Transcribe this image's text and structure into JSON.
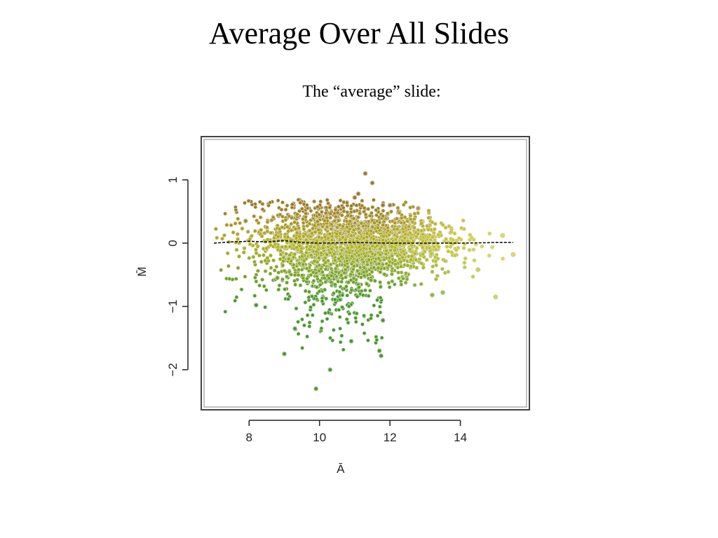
{
  "slide": {
    "title": "Average Over All Slides",
    "subtitle": "The “average” slide:"
  },
  "colors": {
    "point_high_M": "#a07a16",
    "point_mid": "#b7b500",
    "point_low_M": "#3f9e1c",
    "point_high_A": "#e8e835",
    "loess_line": "#111111",
    "frame": "#444444"
  },
  "chart_data": {
    "type": "scatter",
    "title": "",
    "xlabel": "Ā",
    "ylabel": "M̄",
    "xlim": [
      6.7,
      15.9
    ],
    "ylim": [
      -2.6,
      1.65
    ],
    "x_ticks": [
      8,
      10,
      12,
      14
    ],
    "x_tick_labels": [
      "8",
      "10",
      "12",
      "14"
    ],
    "y_ticks": [
      1,
      0,
      -1,
      -2
    ],
    "y_tick_labels": [
      "1",
      "0",
      "−1",
      "−2"
    ],
    "grid": false,
    "legend": "none",
    "point_cloud": {
      "description_free": true,
      "approx_n_points": 2600,
      "x_range": [
        7.0,
        15.5
      ],
      "core_y_range": [
        -0.4,
        0.45
      ]
    },
    "outliers": [
      {
        "x": 11.3,
        "y": 1.1
      },
      {
        "x": 11.5,
        "y": 0.95
      },
      {
        "x": 11.1,
        "y": 0.78
      },
      {
        "x": 11.0,
        "y": 0.72
      },
      {
        "x": 12.8,
        "y": 0.55
      },
      {
        "x": 11.8,
        "y": 0.6
      },
      {
        "x": 12.0,
        "y": 0.6
      },
      {
        "x": 9.9,
        "y": -2.3
      },
      {
        "x": 10.3,
        "y": -2.0
      },
      {
        "x": 11.7,
        "y": -1.7
      },
      {
        "x": 11.75,
        "y": -1.78
      },
      {
        "x": 9.0,
        "y": -1.75
      },
      {
        "x": 10.9,
        "y": -1.55
      },
      {
        "x": 11.8,
        "y": -1.22
      },
      {
        "x": 13.2,
        "y": -0.82
      },
      {
        "x": 13.5,
        "y": -0.78
      },
      {
        "x": 15.0,
        "y": -0.85
      },
      {
        "x": 14.5,
        "y": -0.42
      },
      {
        "x": 15.5,
        "y": -0.18
      },
      {
        "x": 15.2,
        "y": 0.12
      },
      {
        "x": 7.9,
        "y": 0.35
      },
      {
        "x": 8.8,
        "y": -0.55
      },
      {
        "x": 8.2,
        "y": -0.98
      },
      {
        "x": 9.3,
        "y": -1.35
      }
    ],
    "loess_line": {
      "x": [
        7.0,
        7.5,
        8.0,
        8.5,
        9.0,
        9.5,
        10.0,
        11.0,
        12.0,
        13.0,
        14.0,
        15.0,
        15.5
      ],
      "y": [
        0.0,
        0.02,
        0.03,
        0.02,
        0.04,
        0.01,
        0.0,
        0.01,
        0.0,
        0.0,
        0.0,
        0.01,
        0.01
      ]
    }
  }
}
